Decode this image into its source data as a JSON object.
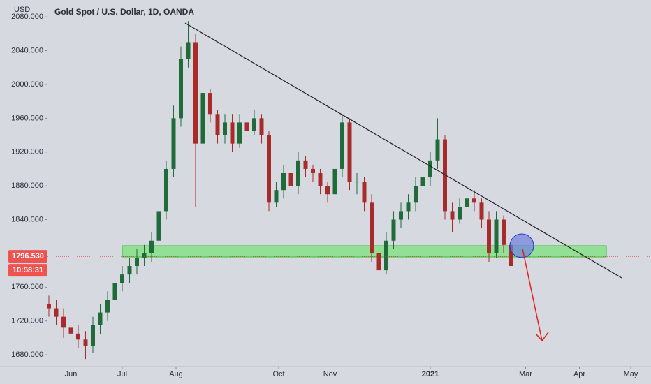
{
  "chart_data": {
    "type": "candlestick",
    "title": "Gold Spot / U.S. Dollar, 1D, OANDA",
    "y_unit": "USD",
    "up_color": "#1f6b3a",
    "down_color": "#a82a2a",
    "x": [
      0,
      3,
      6,
      9,
      12,
      15,
      18,
      21,
      24,
      27,
      30,
      33,
      36,
      39,
      42,
      45,
      48,
      51,
      54,
      57,
      60,
      63,
      66,
      69,
      72,
      75,
      78,
      81,
      84,
      87,
      90,
      93,
      96,
      99,
      102,
      105,
      108,
      111,
      114,
      117,
      120,
      123,
      126,
      129,
      132,
      135,
      138,
      141,
      144,
      147,
      150,
      153,
      156,
      159,
      162,
      165,
      168,
      171,
      174,
      177,
      180,
      183,
      186,
      189
    ],
    "open": [
      1740,
      1735,
      1725,
      1712,
      1705,
      1698,
      1690,
      1715,
      1730,
      1745,
      1765,
      1775,
      1785,
      1795,
      1800,
      1815,
      1850,
      1900,
      1960,
      2030,
      2050,
      1930,
      1990,
      1965,
      1940,
      1955,
      1930,
      1955,
      1945,
      1960,
      1940,
      1860,
      1875,
      1895,
      1880,
      1910,
      1900,
      1895,
      1880,
      1870,
      1900,
      1955,
      1885,
      1885,
      1860,
      1800,
      1780,
      1815,
      1840,
      1850,
      1860,
      1880,
      1890,
      1910,
      1935,
      1850,
      1840,
      1855,
      1865,
      1860,
      1840,
      1800,
      1840,
      1810
    ],
    "high": [
      1750,
      1745,
      1735,
      1722,
      1715,
      1708,
      1725,
      1740,
      1755,
      1775,
      1785,
      1795,
      1805,
      1810,
      1825,
      1860,
      1910,
      1975,
      2045,
      2075,
      2060,
      2005,
      1995,
      1970,
      1965,
      1965,
      1965,
      1960,
      1970,
      1965,
      1945,
      1885,
      1905,
      1900,
      1920,
      1915,
      1905,
      1900,
      1885,
      1910,
      1965,
      1960,
      1895,
      1890,
      1870,
      1810,
      1825,
      1850,
      1860,
      1870,
      1890,
      1900,
      1920,
      1960,
      1940,
      1860,
      1865,
      1875,
      1875,
      1865,
      1850,
      1850,
      1845,
      1815
    ],
    "low": [
      1725,
      1715,
      1700,
      1695,
      1688,
      1675,
      1682,
      1705,
      1720,
      1735,
      1755,
      1765,
      1775,
      1785,
      1790,
      1805,
      1840,
      1890,
      1950,
      2020,
      1855,
      1920,
      1955,
      1930,
      1930,
      1920,
      1925,
      1935,
      1940,
      1930,
      1850,
      1855,
      1865,
      1870,
      1870,
      1890,
      1885,
      1870,
      1860,
      1860,
      1890,
      1875,
      1870,
      1850,
      1790,
      1765,
      1775,
      1805,
      1830,
      1840,
      1850,
      1870,
      1880,
      1900,
      1840,
      1825,
      1835,
      1845,
      1850,
      1830,
      1790,
      1795,
      1800,
      1760
    ],
    "close": [
      1735,
      1725,
      1712,
      1705,
      1698,
      1690,
      1715,
      1730,
      1745,
      1765,
      1775,
      1785,
      1795,
      1800,
      1815,
      1850,
      1900,
      1960,
      2030,
      2050,
      1930,
      1990,
      1965,
      1940,
      1955,
      1930,
      1955,
      1945,
      1960,
      1940,
      1860,
      1875,
      1895,
      1880,
      1910,
      1900,
      1895,
      1880,
      1870,
      1900,
      1955,
      1885,
      1885,
      1860,
      1800,
      1780,
      1815,
      1840,
      1850,
      1860,
      1880,
      1890,
      1910,
      1935,
      1850,
      1840,
      1855,
      1865,
      1860,
      1840,
      1800,
      1840,
      1810,
      1785
    ],
    "xlim": [
      0,
      240
    ],
    "xticks": [
      {
        "value": 9,
        "label": "Jun"
      },
      {
        "value": 30,
        "label": "Jul"
      },
      {
        "value": 52,
        "label": "Aug"
      },
      {
        "value": 94,
        "label": "Oct"
      },
      {
        "value": 115,
        "label": "Nov"
      },
      {
        "value": 156,
        "label": "2021"
      },
      {
        "value": 195,
        "label": "Mar"
      },
      {
        "value": 217,
        "label": "Apr"
      },
      {
        "value": 238,
        "label": "May"
      }
    ],
    "ylim": [
      1666,
      2100
    ],
    "yticks": [
      {
        "value": 1680,
        "label": "1680.000"
      },
      {
        "value": 1720,
        "label": "1720.000"
      },
      {
        "value": 1760,
        "label": "1760.000"
      },
      {
        "value": 1800,
        "label": "1800.000"
      },
      {
        "value": 1840,
        "label": "1840.000"
      },
      {
        "value": 1880,
        "label": "1880.000"
      },
      {
        "value": 1920,
        "label": "1920.000"
      },
      {
        "value": 1960,
        "label": "1960.000"
      },
      {
        "value": 2000,
        "label": "2000.000"
      },
      {
        "value": 2040,
        "label": "2040.000"
      },
      {
        "value": 2080,
        "label": "2080.000"
      }
    ],
    "current_price": {
      "value": 1796.53,
      "label": "1796.530"
    },
    "countdown": "10:58:31"
  }
}
